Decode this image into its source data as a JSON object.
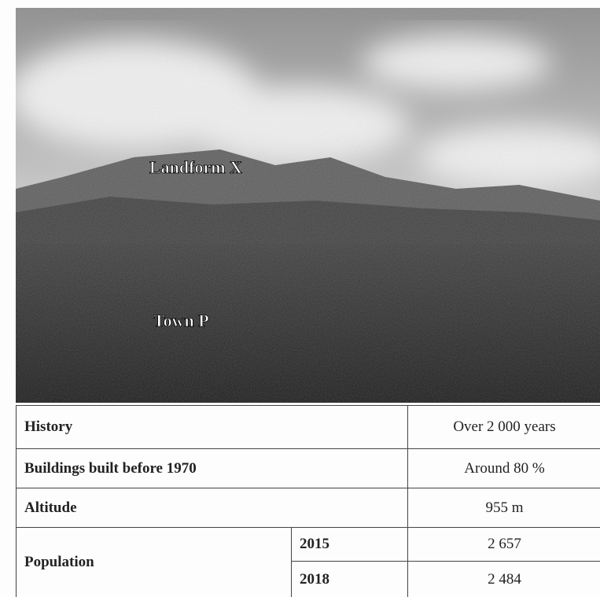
{
  "photo": {
    "labels": [
      "Landform X",
      "Town P"
    ]
  },
  "table": {
    "rows": [
      [
        "History",
        "Over 2 000 years"
      ],
      [
        "Buildings built before 1970",
        "Around 80 %"
      ],
      [
        "Altitude",
        "955 m"
      ]
    ],
    "population": {
      "label": "Population",
      "years": [
        [
          "2015",
          "2 657"
        ],
        [
          "2018",
          "2 484"
        ]
      ]
    }
  }
}
